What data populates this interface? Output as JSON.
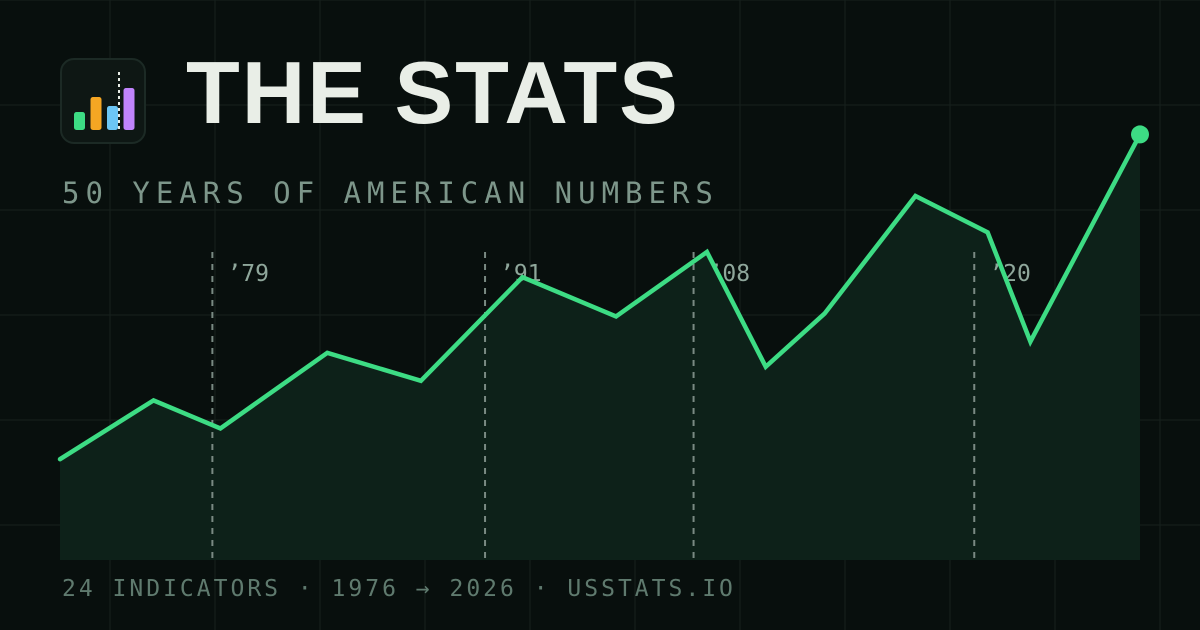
{
  "header": {
    "title": "THE STATS",
    "subtitle": "50 YEARS OF AMERICAN NUMBERS"
  },
  "footer": {
    "text": "24 INDICATORS · 1976 → 2026 · USSTATS.IO"
  },
  "logo": {
    "icon": "bar-chart-icon",
    "bars": [
      {
        "level": 0.3,
        "color": "#3ddc84"
      },
      {
        "level": 0.55,
        "color": "#f5a623"
      },
      {
        "level": 0.4,
        "color": "#6cc6f5"
      },
      {
        "level": 0.7,
        "color": "#c084fc"
      }
    ]
  },
  "colors": {
    "background": "#080f0d",
    "line": "#3ddc84",
    "area": "#0d2119",
    "grid": "#17211d",
    "marker": "#7a8a83"
  },
  "chart_data": {
    "type": "line",
    "title": "",
    "xlabel": "",
    "ylabel": "",
    "x": [
      1976,
      1979.5,
      1982,
      1986,
      1989.5,
      1993.3,
      1996.8,
      2000.2,
      2002.4,
      2004.6,
      2008,
      2010.7,
      2012.3,
      2016.4
    ],
    "values": [
      18,
      28.5,
      23.5,
      37,
      32,
      50.5,
      43.5,
      55,
      34.5,
      44,
      65,
      58.5,
      39,
      76
    ],
    "xlim": [
      1976,
      2016.4
    ],
    "ylim": [
      0,
      100
    ],
    "grid": true,
    "markers": [
      {
        "x": 1981.7,
        "label": "’79"
      },
      {
        "x": 1991.9,
        "label": "’91"
      },
      {
        "x": 1999.7,
        "label": "’08"
      },
      {
        "x": 2010.2,
        "label": "’20"
      }
    ],
    "end_point": true
  }
}
